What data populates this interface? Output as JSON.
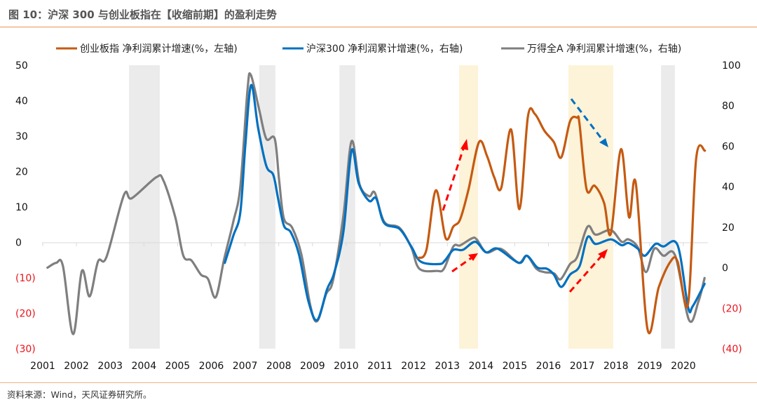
{
  "chart_data": {
    "type": "line",
    "title": "图 10：沪深 300 与创业板指在【收缩前期】的盈利走势",
    "source": "资料来源：Wind，天风证券研究所。",
    "x_ticks": [
      "2001",
      "2002",
      "2003",
      "2004",
      "2005",
      "2006",
      "2007",
      "2008",
      "2009",
      "2010",
      "2011",
      "2012",
      "2013",
      "2014",
      "2015",
      "2016",
      "2017",
      "2018",
      "2019",
      "2020"
    ],
    "left_axis": {
      "range": [
        -30,
        50
      ],
      "ticks": [
        "50",
        "40",
        "30",
        "20",
        "10",
        "0",
        "(10)",
        "(20)",
        "(30)"
      ]
    },
    "right_axis": {
      "range": [
        -40,
        100
      ],
      "ticks": [
        "100",
        "80",
        "60",
        "40",
        "20",
        "0",
        "(20)",
        "(40)"
      ]
    },
    "colors": {
      "orange": "#c55a11",
      "blue": "#0070c0",
      "gray": "#7f7f7f",
      "negative_label": "#e8131b",
      "gray_band": "#ebebeb",
      "yellow_band": "#fdf3d8",
      "title_rule": "#f4b183"
    },
    "shaded_periods": {
      "gray": [
        [
          2003.56,
          2004.47
        ],
        [
          2007.42,
          2007.9
        ],
        [
          2009.8,
          2010.27
        ],
        [
          2019.34,
          2019.75
        ]
      ],
      "yellow": [
        [
          2013.35,
          2013.91
        ],
        [
          2016.59,
          2017.92
        ]
      ]
    },
    "series": [
      {
        "name": "创业板指 净利润累计增速(%，左轴)",
        "axis": "left",
        "color": "#c55a11",
        "points": [
          [
            2012.14,
            -4.4
          ],
          [
            2012.38,
            -2.1
          ],
          [
            2012.66,
            14.7
          ],
          [
            2012.95,
            1.2
          ],
          [
            2013.18,
            4.5
          ],
          [
            2013.38,
            6.5
          ],
          [
            2013.63,
            15
          ],
          [
            2013.94,
            28.3
          ],
          [
            2014.18,
            24.3
          ],
          [
            2014.39,
            18.4
          ],
          [
            2014.6,
            15.4
          ],
          [
            2014.89,
            31.9
          ],
          [
            2015.14,
            9.4
          ],
          [
            2015.39,
            35.5
          ],
          [
            2015.6,
            36.2
          ],
          [
            2015.88,
            31.5
          ],
          [
            2016.16,
            28.3
          ],
          [
            2016.38,
            24
          ],
          [
            2016.64,
            34.2
          ],
          [
            2016.85,
            35.2
          ],
          [
            2016.92,
            33.5
          ],
          [
            2017.13,
            15
          ],
          [
            2017.37,
            16
          ],
          [
            2017.65,
            11.1
          ],
          [
            2017.85,
            2.5
          ],
          [
            2018.15,
            26.3
          ],
          [
            2018.39,
            7.1
          ],
          [
            2018.59,
            16.7
          ],
          [
            2018.94,
            -24.6
          ],
          [
            2019.27,
            -12.7
          ],
          [
            2019.62,
            -5.4
          ],
          [
            2019.83,
            -5.4
          ],
          [
            2020.14,
            -17.3
          ],
          [
            2020.38,
            23.6
          ],
          [
            2020.64,
            25.9
          ]
        ]
      },
      {
        "name": "沪深300 净利润累计增速(%，右轴)",
        "axis": "right",
        "color": "#0070c0",
        "points": [
          [
            2006.4,
            2.4
          ],
          [
            2006.65,
            15.7
          ],
          [
            2006.86,
            27.3
          ],
          [
            2007.01,
            60.7
          ],
          [
            2007.18,
            90.2
          ],
          [
            2007.39,
            68.8
          ],
          [
            2007.63,
            50.3
          ],
          [
            2007.84,
            45.7
          ],
          [
            2007.98,
            34.2
          ],
          [
            2008.15,
            20.9
          ],
          [
            2008.36,
            17.4
          ],
          [
            2008.6,
            6.5
          ],
          [
            2008.88,
            -16.6
          ],
          [
            2009.14,
            -25.9
          ],
          [
            2009.43,
            -10.8
          ],
          [
            2009.64,
            -2.8
          ],
          [
            2009.92,
            18
          ],
          [
            2010.16,
            57.9
          ],
          [
            2010.37,
            41.7
          ],
          [
            2010.68,
            33
          ],
          [
            2010.89,
            34.2
          ],
          [
            2011.13,
            22
          ],
          [
            2011.58,
            19.2
          ],
          [
            2011.93,
            10.5
          ],
          [
            2012.21,
            3
          ],
          [
            2012.76,
            1.8
          ],
          [
            2012.93,
            3.6
          ],
          [
            2013.18,
            8.8
          ],
          [
            2013.46,
            8.8
          ],
          [
            2013.83,
            12.8
          ],
          [
            2014.15,
            7.6
          ],
          [
            2014.49,
            9.4
          ],
          [
            2015.12,
            2.4
          ],
          [
            2015.36,
            5.9
          ],
          [
            2015.67,
            0.1
          ],
          [
            2015.95,
            -0.5
          ],
          [
            2016.16,
            -3.4
          ],
          [
            2016.38,
            -9.5
          ],
          [
            2016.64,
            -3.4
          ],
          [
            2016.92,
            0.7
          ],
          [
            2017.16,
            15.1
          ],
          [
            2017.4,
            11.7
          ],
          [
            2017.85,
            14
          ],
          [
            2018.17,
            11.1
          ],
          [
            2018.37,
            12.2
          ],
          [
            2018.65,
            9.4
          ],
          [
            2018.86,
            5.9
          ],
          [
            2019.17,
            11.7
          ],
          [
            2019.41,
            10.5
          ],
          [
            2019.83,
            11.1
          ],
          [
            2020.14,
            -19.5
          ],
          [
            2020.28,
            -19
          ],
          [
            2020.63,
            -8
          ]
        ]
      },
      {
        "name": "万得全A 净利润累计增速(%，右轴)",
        "axis": "right",
        "color": "#7f7f7f",
        "points": [
          [
            2001.14,
            0
          ],
          [
            2001.4,
            2.4
          ],
          [
            2001.6,
            0.7
          ],
          [
            2001.9,
            -32.8
          ],
          [
            2002.16,
            -1.6
          ],
          [
            2002.39,
            -14.2
          ],
          [
            2002.64,
            3.1
          ],
          [
            2002.89,
            5.3
          ],
          [
            2003.41,
            36
          ],
          [
            2003.64,
            34.3
          ],
          [
            2004.37,
            44.7
          ],
          [
            2004.58,
            43
          ],
          [
            2004.93,
            25
          ],
          [
            2005.17,
            5.9
          ],
          [
            2005.41,
            3.6
          ],
          [
            2005.69,
            -3.4
          ],
          [
            2005.9,
            -5.5
          ],
          [
            2006.13,
            -14.6
          ],
          [
            2006.38,
            4.2
          ],
          [
            2006.65,
            22.6
          ],
          [
            2006.86,
            40
          ],
          [
            2007.07,
            87.3
          ],
          [
            2007.17,
            95.3
          ],
          [
            2007.42,
            78
          ],
          [
            2007.63,
            63.7
          ],
          [
            2007.88,
            63.7
          ],
          [
            2008.01,
            43.4
          ],
          [
            2008.15,
            24.4
          ],
          [
            2008.4,
            19.7
          ],
          [
            2008.67,
            6.6
          ],
          [
            2008.94,
            -19
          ],
          [
            2009.14,
            -26.4
          ],
          [
            2009.4,
            -13.2
          ],
          [
            2009.61,
            -6.2
          ],
          [
            2009.92,
            26
          ],
          [
            2010.16,
            62.5
          ],
          [
            2010.4,
            41
          ],
          [
            2010.68,
            35.3
          ],
          [
            2010.85,
            37
          ],
          [
            2011.13,
            22.6
          ],
          [
            2011.58,
            19.7
          ],
          [
            2011.93,
            10
          ],
          [
            2012.17,
            -0.5
          ],
          [
            2012.69,
            -1.6
          ],
          [
            2012.9,
            -0.5
          ],
          [
            2013.18,
            10.5
          ],
          [
            2013.38,
            11
          ],
          [
            2013.73,
            14.5
          ],
          [
            2013.87,
            14
          ],
          [
            2014.15,
            7.6
          ],
          [
            2014.49,
            9.4
          ],
          [
            2014.7,
            8.2
          ],
          [
            2015.12,
            2.4
          ],
          [
            2015.36,
            5.9
          ],
          [
            2015.64,
            -0.5
          ],
          [
            2015.88,
            -2.2
          ],
          [
            2016.16,
            -2.8
          ],
          [
            2016.36,
            -5.7
          ],
          [
            2016.64,
            1.8
          ],
          [
            2016.85,
            5.3
          ],
          [
            2017.16,
            20.3
          ],
          [
            2017.4,
            16.3
          ],
          [
            2017.85,
            18.6
          ],
          [
            2018.17,
            12.8
          ],
          [
            2018.37,
            14
          ],
          [
            2018.65,
            10
          ],
          [
            2018.89,
            -2.2
          ],
          [
            2019.14,
            9.4
          ],
          [
            2019.41,
            5.9
          ],
          [
            2019.76,
            5.9
          ],
          [
            2020.17,
            -25.9
          ],
          [
            2020.45,
            -16.6
          ],
          [
            2020.63,
            -5.1
          ]
        ]
      }
    ]
  }
}
